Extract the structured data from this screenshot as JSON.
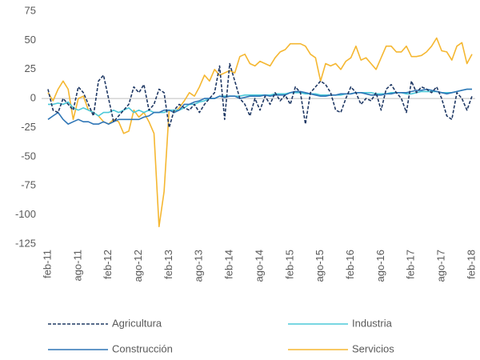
{
  "chart_data": {
    "type": "line",
    "categories": [
      "feb-11",
      null,
      null,
      null,
      null,
      null,
      "ago-11",
      null,
      null,
      null,
      null,
      null,
      "feb-12",
      null,
      null,
      null,
      null,
      null,
      "ago-12",
      null,
      null,
      null,
      null,
      null,
      "feb-13",
      null,
      null,
      null,
      null,
      null,
      "ago-13",
      null,
      null,
      null,
      null,
      null,
      "feb-14",
      null,
      null,
      null,
      null,
      null,
      "ago-14",
      null,
      null,
      null,
      null,
      null,
      "feb-15",
      null,
      null,
      null,
      null,
      null,
      "ago-15",
      null,
      null,
      null,
      null,
      null,
      "feb-16",
      null,
      null,
      null,
      null,
      null,
      "ago-16",
      null,
      null,
      null,
      null,
      null,
      "feb-17",
      null,
      null,
      null,
      null,
      null,
      "ago-17",
      null,
      null,
      null,
      null,
      null,
      "feb-18"
    ],
    "series": [
      {
        "name": "Agricultura",
        "color": "#1f3864",
        "dashed": true,
        "values": [
          8,
          -10,
          -12,
          0,
          -5,
          -10,
          10,
          5,
          -5,
          -15,
          15,
          20,
          0,
          -20,
          -15,
          -10,
          -5,
          10,
          5,
          12,
          -10,
          -5,
          8,
          5,
          -25,
          -10,
          -5,
          -8,
          -10,
          -5,
          -12,
          -5,
          0,
          5,
          28,
          -18,
          30,
          15,
          0,
          -5,
          -15,
          0,
          -10,
          2,
          -5,
          5,
          -2,
          3,
          -5,
          10,
          5,
          -22,
          5,
          10,
          15,
          12,
          5,
          -10,
          -12,
          0,
          10,
          5,
          -5,
          0,
          -2,
          5,
          -10,
          8,
          12,
          5,
          0,
          -12,
          15,
          5,
          10,
          8,
          5,
          10,
          0,
          -15,
          -18,
          5,
          0,
          -10,
          2
        ]
      },
      {
        "name": "Industria",
        "color": "#4bc8d8",
        "dashed": false,
        "values": [
          -5,
          -5,
          -4,
          -5,
          -3,
          -8,
          -10,
          -8,
          -10,
          -12,
          -15,
          -12,
          -12,
          -10,
          -12,
          -10,
          -8,
          -12,
          -10,
          -12,
          -10,
          -12,
          -12,
          -12,
          -10,
          -10,
          -10,
          -8,
          -5,
          -5,
          -3,
          -2,
          0,
          0,
          2,
          2,
          2,
          2,
          2,
          3,
          3,
          3,
          3,
          3,
          3,
          4,
          4,
          4,
          5,
          5,
          5,
          4,
          4,
          4,
          3,
          3,
          3,
          3,
          3,
          4,
          4,
          5,
          5,
          5,
          5,
          4,
          4,
          4,
          5,
          5,
          5,
          4,
          4,
          5,
          6,
          6,
          6,
          6,
          5,
          5,
          5,
          6,
          7,
          8,
          8
        ]
      },
      {
        "name": "Construcción",
        "color": "#2e75b6",
        "dashed": false,
        "values": [
          -18,
          -15,
          -12,
          -18,
          -22,
          -20,
          -18,
          -20,
          -20,
          -22,
          -22,
          -20,
          -22,
          -20,
          -18,
          -18,
          -18,
          -18,
          -18,
          -16,
          -15,
          -12,
          -12,
          -10,
          -10,
          -12,
          -10,
          -5,
          -5,
          -3,
          -2,
          0,
          0,
          0,
          2,
          1,
          2,
          2,
          0,
          1,
          2,
          2,
          2,
          3,
          2,
          3,
          3,
          3,
          5,
          6,
          6,
          5,
          4,
          3,
          2,
          2,
          3,
          3,
          4,
          4,
          4,
          5,
          5,
          4,
          3,
          3,
          3,
          4,
          4,
          5,
          5,
          5,
          6,
          7,
          7,
          8,
          7,
          6,
          5,
          4,
          5,
          6,
          7,
          8,
          8
        ]
      },
      {
        "name": "Servicios",
        "color": "#f5b731",
        "dashed": false,
        "values": [
          5,
          -2,
          8,
          15,
          8,
          -18,
          0,
          2,
          -10,
          -12,
          -15,
          -20,
          -22,
          -18,
          -20,
          -30,
          -28,
          -10,
          -16,
          -12,
          -20,
          -30,
          -110,
          -80,
          -10,
          -12,
          -8,
          -2,
          5,
          2,
          10,
          20,
          15,
          25,
          20,
          22,
          24,
          22,
          36,
          38,
          30,
          28,
          32,
          30,
          28,
          35,
          40,
          42,
          47,
          47,
          47,
          45,
          38,
          35,
          15,
          30,
          28,
          30,
          25,
          32,
          35,
          45,
          33,
          35,
          30,
          25,
          35,
          45,
          45,
          40,
          40,
          45,
          36,
          36,
          37,
          40,
          45,
          52,
          41,
          40,
          33,
          45,
          48,
          30,
          38
        ]
      }
    ],
    "ylim": [
      -125,
      75
    ],
    "yticks": [
      75,
      50,
      25,
      0,
      -25,
      -50,
      -75,
      -100,
      -125
    ]
  }
}
